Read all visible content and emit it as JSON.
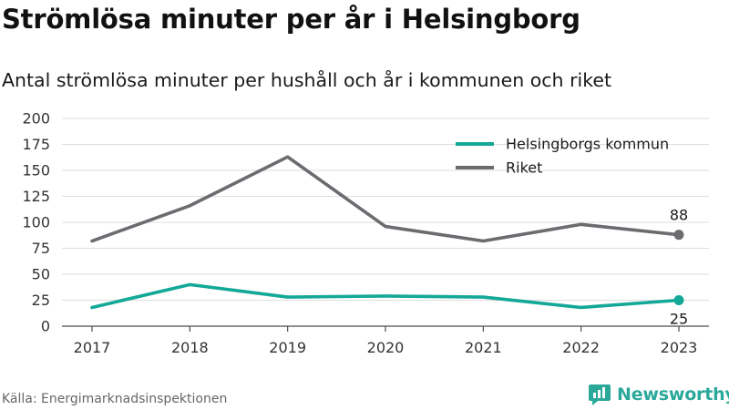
{
  "title": "Strömlösa minuter per år i Helsingborg",
  "subtitle": "Antal strömlösa minuter per hushåll och år i kommunen och riket",
  "source": "Källa: Energimarknadsinspektionen",
  "brand": {
    "name": "Newsworthy",
    "icon": "newsworthy-logo-icon",
    "color": "#2aa89a"
  },
  "chart_data": {
    "type": "line",
    "x": [
      "2017",
      "2018",
      "2019",
      "2020",
      "2021",
      "2022",
      "2023"
    ],
    "series": [
      {
        "name": "Helsingborgs kommun",
        "color": "#14a898",
        "values": [
          18,
          40,
          28,
          29,
          28,
          18,
          25
        ],
        "end_label": "25"
      },
      {
        "name": "Riket",
        "color": "#6b6b70",
        "values": [
          82,
          116,
          163,
          96,
          82,
          98,
          88
        ],
        "end_label": "88"
      }
    ],
    "ylim": [
      0,
      200
    ],
    "yticks": [
      "0",
      "25",
      "50",
      "75",
      "100",
      "125",
      "150",
      "175",
      "200"
    ],
    "grid": true,
    "legend": "top-right"
  }
}
